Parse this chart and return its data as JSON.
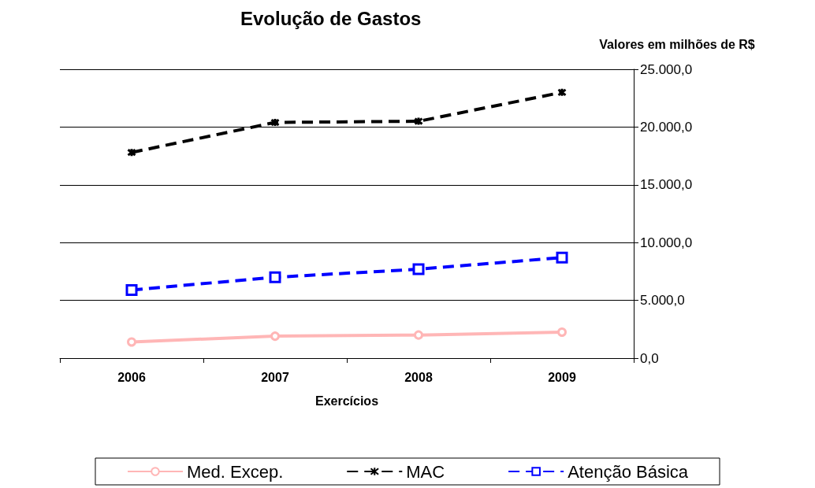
{
  "chart_data": {
    "type": "line",
    "title": "Evolução de Gastos",
    "xlabel": "Exercícios",
    "ylabel": "Valores em milhões de R$",
    "categories": [
      "2006",
      "2007",
      "2008",
      "2009"
    ],
    "series": [
      {
        "name": "Med. Excep.",
        "color": "#ffb6b6",
        "values": [
          1400,
          1900,
          2000,
          2250
        ],
        "marker": "circle",
        "line_style": "solid"
      },
      {
        "name": "MAC",
        "color": "#000000",
        "values": [
          17800,
          20400,
          20500,
          23000
        ],
        "marker": "cross",
        "line_style": "dashed"
      },
      {
        "name": "Atenção Básica",
        "color": "#0000ff",
        "values": [
          5900,
          7000,
          7700,
          8700
        ],
        "marker": "square",
        "line_style": "dashed"
      }
    ],
    "ylim": [
      0,
      25000
    ],
    "yticks": [
      {
        "value": 0,
        "label": "0,0"
      },
      {
        "value": 5000,
        "label": "5.000,0"
      },
      {
        "value": 10000,
        "label": "10.000,0"
      },
      {
        "value": 15000,
        "label": "15.000,0"
      },
      {
        "value": 20000,
        "label": "20.000,0"
      },
      {
        "value": 25000,
        "label": "25.000,0"
      }
    ],
    "grid": "y",
    "legend": "bottom"
  }
}
